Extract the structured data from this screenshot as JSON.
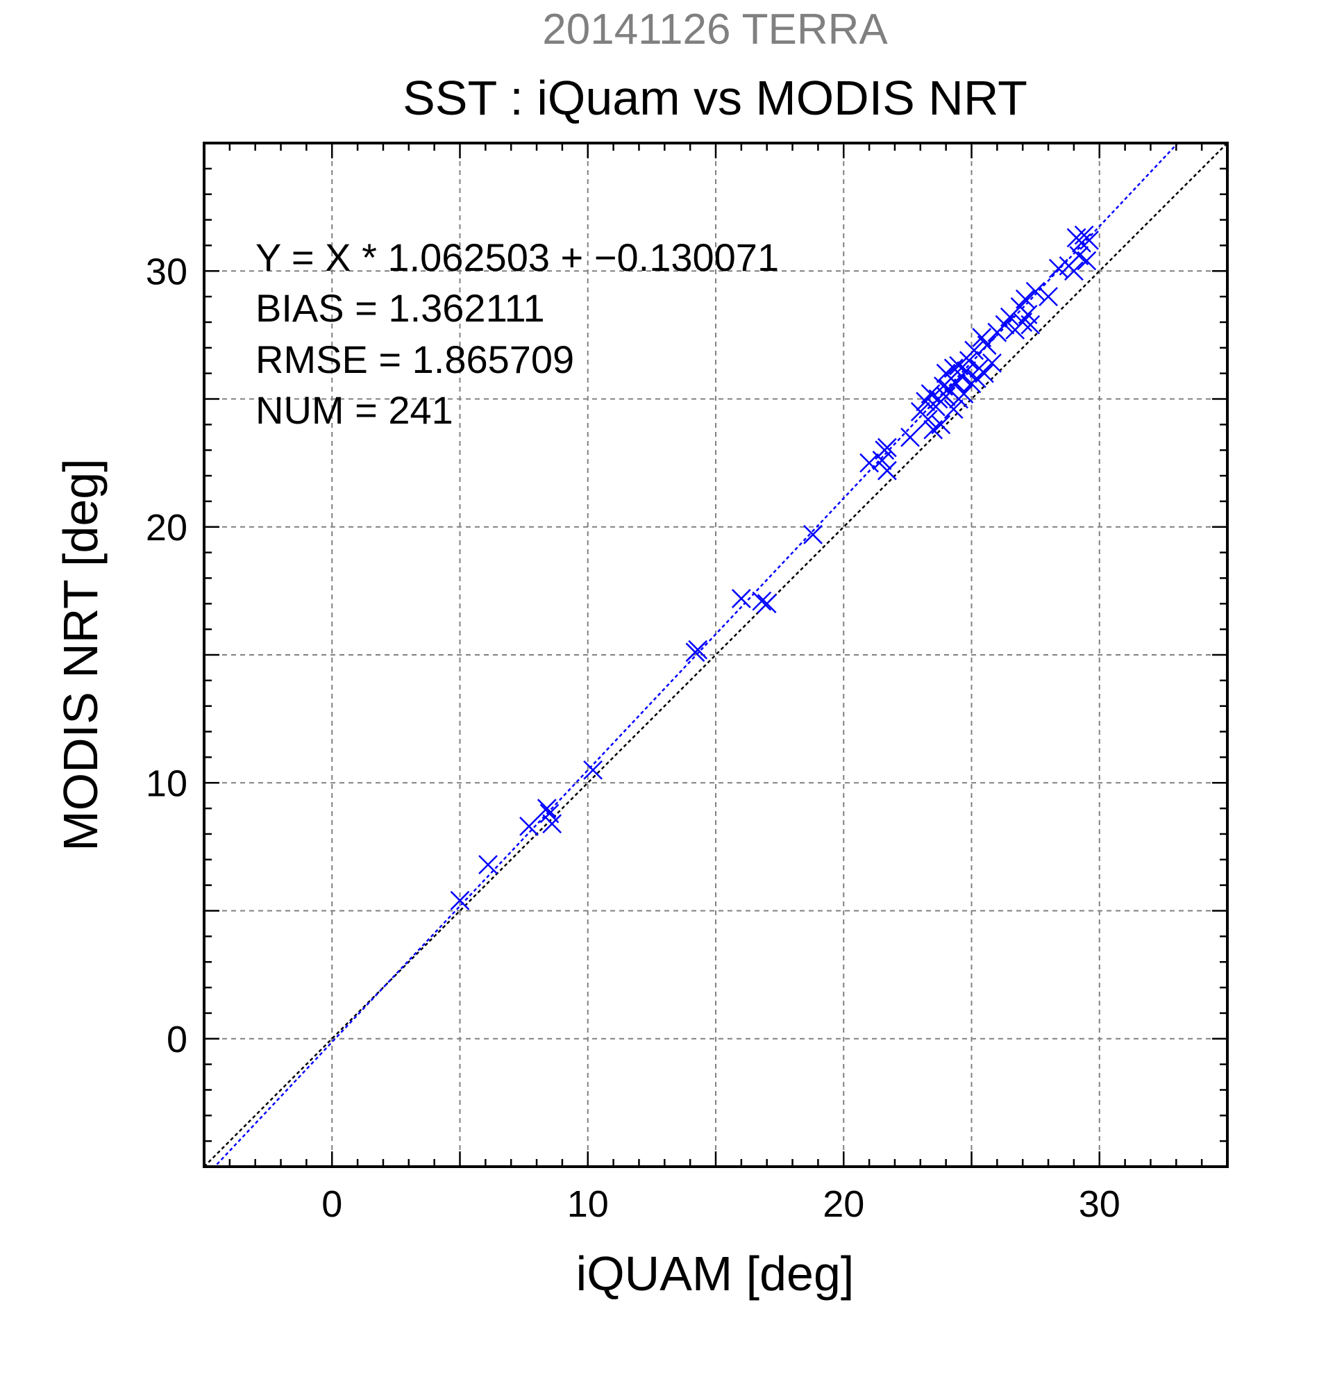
{
  "chart_data": {
    "type": "scatter",
    "supertitle": "20141126 TERRA",
    "title": "SST : iQuam vs MODIS NRT",
    "xlabel": "iQUAM [deg]",
    "ylabel": "MODIS NRT [deg]",
    "xlim": [
      -5,
      35
    ],
    "ylim": [
      -5,
      35
    ],
    "xticks": [
      0,
      10,
      20,
      30
    ],
    "yticks": [
      0,
      10,
      20,
      30
    ],
    "xtick_labels": [
      "0",
      "10",
      "20",
      "30"
    ],
    "ytick_labels": [
      "0",
      "10",
      "20",
      "30"
    ],
    "grid": true,
    "annotations": [
      "Y = X * 1.062503 + −0.130071",
      "BIAS = 1.362111",
      "RMSE = 1.865709",
      "NUM = 241"
    ],
    "regression": {
      "slope": 1.062503,
      "intercept": -0.130071
    },
    "bias": 1.362111,
    "rmse": 1.865709,
    "num": 241,
    "reference_line": "y = x",
    "colors": {
      "points": "#0000ff",
      "fit_line": "#0000ff",
      "reference_line": "#000000",
      "supertitle": "#808080"
    },
    "points": [
      [
        5.0,
        5.4
      ],
      [
        6.1,
        6.8
      ],
      [
        7.7,
        8.3
      ],
      [
        8.4,
        9.0
      ],
      [
        8.5,
        8.8
      ],
      [
        8.6,
        8.4
      ],
      [
        10.2,
        10.5
      ],
      [
        14.2,
        15.1
      ],
      [
        14.3,
        15.2
      ],
      [
        16.0,
        17.2
      ],
      [
        16.8,
        17.1
      ],
      [
        17.0,
        17.0
      ],
      [
        18.8,
        19.7
      ],
      [
        21.0,
        22.5
      ],
      [
        21.5,
        22.6
      ],
      [
        21.7,
        22.2
      ],
      [
        21.6,
        23.0
      ],
      [
        21.7,
        23.1
      ],
      [
        22.6,
        23.5
      ],
      [
        23.0,
        24.5
      ],
      [
        23.2,
        24.9
      ],
      [
        23.3,
        24.2
      ],
      [
        23.4,
        25.2
      ],
      [
        23.5,
        23.8
      ],
      [
        23.6,
        24.7
      ],
      [
        23.7,
        25.0
      ],
      [
        23.8,
        24.0
      ],
      [
        23.9,
        25.5
      ],
      [
        24.0,
        25.1
      ],
      [
        24.0,
        26.0
      ],
      [
        24.1,
        25.4
      ],
      [
        24.2,
        25.8
      ],
      [
        24.3,
        24.6
      ],
      [
        24.3,
        26.2
      ],
      [
        24.4,
        25.6
      ],
      [
        24.5,
        25.0
      ],
      [
        24.5,
        26.3
      ],
      [
        24.6,
        25.9
      ],
      [
        24.7,
        25.2
      ],
      [
        24.8,
        26.1
      ],
      [
        24.9,
        26.5
      ],
      [
        25.0,
        25.6
      ],
      [
        25.1,
        26.9
      ],
      [
        25.2,
        25.8
      ],
      [
        25.3,
        26.2
      ],
      [
        25.4,
        27.4
      ],
      [
        25.5,
        26.0
      ],
      [
        25.6,
        27.1
      ],
      [
        25.8,
        26.4
      ],
      [
        26.0,
        27.6
      ],
      [
        26.3,
        27.9
      ],
      [
        26.5,
        28.2
      ],
      [
        26.7,
        27.7
      ],
      [
        26.9,
        28.6
      ],
      [
        27.0,
        28.0
      ],
      [
        27.1,
        28.9
      ],
      [
        27.2,
        28.3
      ],
      [
        27.3,
        27.9
      ],
      [
        27.5,
        29.2
      ],
      [
        28.0,
        29.0
      ],
      [
        28.4,
        30.1
      ],
      [
        28.8,
        30.2
      ],
      [
        29.0,
        30.0
      ],
      [
        29.1,
        31.3
      ],
      [
        29.2,
        30.6
      ],
      [
        29.3,
        31.1
      ],
      [
        29.4,
        31.4
      ],
      [
        29.5,
        30.4
      ],
      [
        29.6,
        31.2
      ]
    ]
  }
}
